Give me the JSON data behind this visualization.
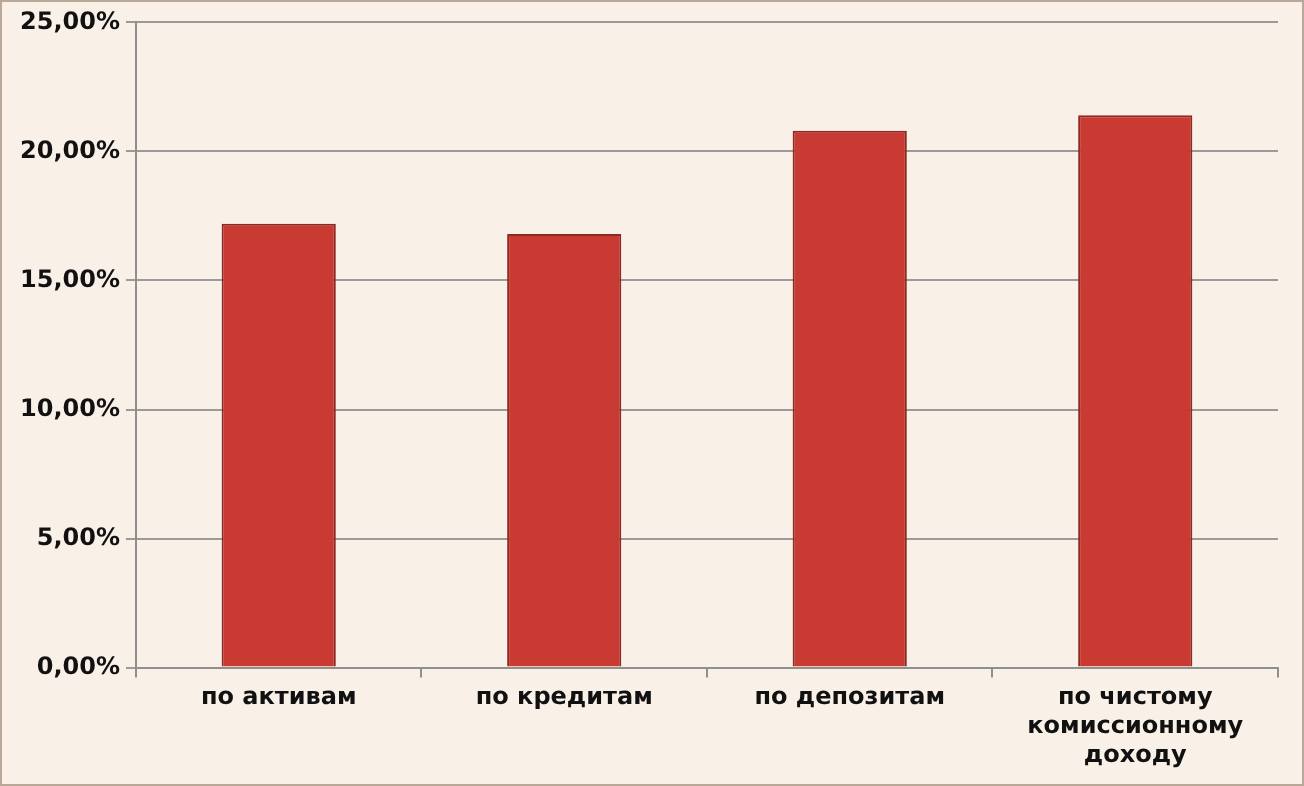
{
  "chart_data": {
    "type": "bar",
    "categories": [
      "по активам",
      "по кредитам",
      "по депозитам",
      "по чистому комиссионному доходу"
    ],
    "values": [
      17.2,
      16.8,
      20.8,
      21.4
    ],
    "color": "#c93a32",
    "ylim": [
      0,
      25
    ],
    "yticks": [
      {
        "value": 0,
        "label": "0,00%"
      },
      {
        "value": 5,
        "label": "5,00%"
      },
      {
        "value": 10,
        "label": "10,00%"
      },
      {
        "value": 15,
        "label": "15,00%"
      },
      {
        "value": 20,
        "label": "20,00%"
      },
      {
        "value": 25,
        "label": "25,00%"
      }
    ],
    "grid": "y",
    "legend": false
  }
}
